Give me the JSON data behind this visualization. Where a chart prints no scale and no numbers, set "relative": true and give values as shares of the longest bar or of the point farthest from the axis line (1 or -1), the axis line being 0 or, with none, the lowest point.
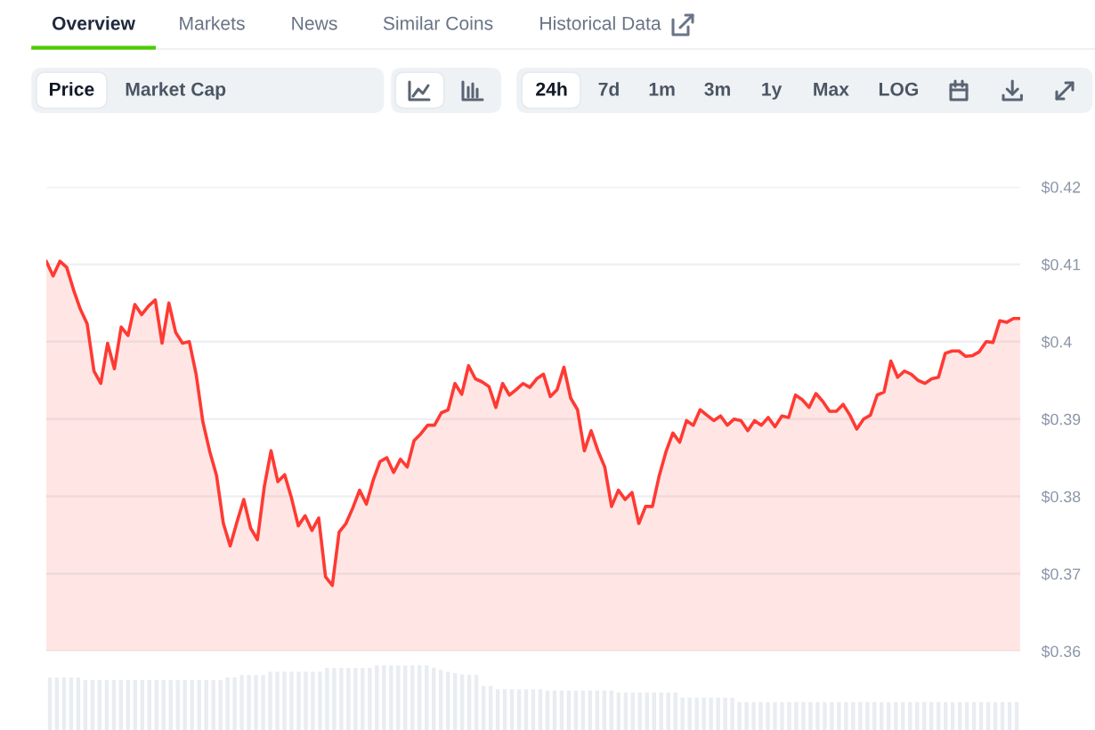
{
  "chart_data": [
    {
      "type": "other",
      "annotations": [
        "Overview",
        "Markets",
        "News",
        "Similar Coins",
        "Historical Data",
        "Price",
        "Market Cap",
        "24h",
        "7d",
        "1m",
        "3m",
        "1y",
        "Max",
        "LOG"
      ]
    },
    {
      "type": "area",
      "color": "#ff3a33",
      "grid": "y",
      "tick_labels": "y",
      "ylim": [
        0.36,
        0.42
      ],
      "yticks": [
        {
          "value": 0.42,
          "label": "$0.42"
        },
        {
          "value": 0.41,
          "label": "$0.41"
        },
        {
          "value": 0.4,
          "label": "$0.4"
        },
        {
          "value": 0.39,
          "label": "$0.39"
        },
        {
          "value": 0.38,
          "label": "$0.38"
        },
        {
          "value": 0.37,
          "label": "$0.37"
        },
        {
          "value": 0.36,
          "label": "$0.36"
        }
      ],
      "categories": [
        null,
        null,
        null,
        null,
        null,
        null,
        null,
        null,
        null,
        null,
        null,
        null,
        null,
        null,
        null,
        null,
        null,
        null,
        null,
        null,
        null,
        null,
        null,
        null,
        null,
        null,
        null,
        null,
        null,
        null,
        null,
        null,
        null,
        null,
        null,
        null,
        null,
        null,
        null,
        null,
        null,
        null,
        null,
        null,
        null,
        null,
        null,
        null,
        null,
        null,
        null,
        null,
        null,
        null,
        null,
        null,
        null,
        null,
        null,
        null,
        null,
        null,
        null,
        null,
        null,
        null,
        null,
        null,
        null,
        null,
        null,
        null,
        null,
        null,
        null,
        null,
        null,
        null,
        null,
        null,
        null,
        null,
        null,
        null,
        null,
        null,
        null,
        null,
        null,
        null,
        null,
        null,
        null,
        null,
        null,
        null,
        null,
        null,
        null,
        null,
        null,
        null,
        null,
        null,
        null,
        null,
        null,
        null,
        null,
        null,
        null,
        null,
        null,
        null,
        null,
        null,
        null,
        null,
        null,
        null,
        null,
        null,
        null,
        null,
        null,
        null,
        null,
        null,
        null,
        null,
        null,
        null,
        null,
        null,
        null,
        null,
        null,
        null,
        null,
        null,
        null,
        null,
        null,
        null
      ],
      "values": [
        0.4104,
        0.4085,
        0.4104,
        0.4096,
        0.4067,
        0.4042,
        0.4023,
        0.3962,
        0.3946,
        0.3998,
        0.3965,
        0.4019,
        0.4008,
        0.4048,
        0.4035,
        0.4046,
        0.4054,
        0.3998,
        0.405,
        0.4012,
        0.3998,
        0.4,
        0.3958,
        0.3896,
        0.3858,
        0.3827,
        0.3765,
        0.3736,
        0.3767,
        0.3796,
        0.3759,
        0.3744,
        0.3812,
        0.3859,
        0.3819,
        0.3828,
        0.3798,
        0.3762,
        0.3775,
        0.3756,
        0.3772,
        0.3696,
        0.3685,
        0.3754,
        0.3765,
        0.3785,
        0.3808,
        0.379,
        0.3821,
        0.3845,
        0.385,
        0.3831,
        0.3848,
        0.3838,
        0.3872,
        0.3881,
        0.3892,
        0.3892,
        0.3908,
        0.3912,
        0.3946,
        0.3932,
        0.3969,
        0.3952,
        0.3948,
        0.3942,
        0.3915,
        0.3946,
        0.3931,
        0.3938,
        0.3946,
        0.3941,
        0.3952,
        0.3958,
        0.3929,
        0.3938,
        0.3967,
        0.3927,
        0.3912,
        0.3859,
        0.3885,
        0.3859,
        0.3838,
        0.3787,
        0.3808,
        0.3796,
        0.3805,
        0.3765,
        0.3787,
        0.3787,
        0.3827,
        0.3858,
        0.3882,
        0.387,
        0.3898,
        0.3892,
        0.3912,
        0.3905,
        0.3898,
        0.3904,
        0.3892,
        0.39,
        0.3898,
        0.3885,
        0.3898,
        0.3892,
        0.3902,
        0.389,
        0.3904,
        0.3902,
        0.3931,
        0.3925,
        0.3915,
        0.3933,
        0.3923,
        0.391,
        0.391,
        0.3919,
        0.3905,
        0.3887,
        0.39,
        0.3905,
        0.3931,
        0.3935,
        0.3975,
        0.3954,
        0.3962,
        0.3958,
        0.395,
        0.3946,
        0.3952,
        0.3954,
        0.3985,
        0.3988,
        0.3988,
        0.3981,
        0.3982,
        0.3987,
        0.4,
        0.3999,
        0.4027,
        0.4025,
        0.403,
        0.403
      ]
    },
    {
      "type": "bar",
      "relative": true,
      "color": "#e9ecf1",
      "tick_labels": false,
      "categories": [
        null,
        null,
        null,
        null,
        null,
        null,
        null,
        null,
        null,
        null,
        null,
        null,
        null,
        null,
        null,
        null,
        null,
        null,
        null,
        null,
        null,
        null,
        null,
        null,
        null,
        null,
        null,
        null,
        null,
        null,
        null,
        null,
        null,
        null,
        null,
        null,
        null,
        null,
        null,
        null,
        null,
        null,
        null,
        null,
        null,
        null,
        null,
        null,
        null,
        null,
        null,
        null,
        null,
        null,
        null,
        null,
        null,
        null,
        null,
        null,
        null,
        null,
        null,
        null,
        null,
        null,
        null,
        null,
        null,
        null,
        null,
        null,
        null,
        null,
        null,
        null,
        null,
        null,
        null,
        null,
        null,
        null,
        null,
        null,
        null,
        null,
        null,
        null,
        null,
        null,
        null,
        null,
        null,
        null,
        null,
        null,
        null,
        null,
        null,
        null,
        null,
        null,
        null,
        null,
        null,
        null,
        null,
        null,
        null,
        null,
        null,
        null,
        null,
        null,
        null,
        null,
        null,
        null,
        null,
        null,
        null,
        null,
        null,
        null,
        null,
        null,
        null,
        null,
        null,
        null,
        null,
        null,
        null,
        null,
        null,
        null,
        null
      ],
      "values": [
        0.81,
        0.81,
        0.81,
        0.81,
        0.81,
        0.77,
        0.77,
        0.77,
        0.77,
        0.77,
        0.77,
        0.77,
        0.77,
        0.77,
        0.77,
        0.77,
        0.77,
        0.77,
        0.77,
        0.77,
        0.77,
        0.77,
        0.77,
        0.77,
        0.77,
        0.81,
        0.81,
        0.85,
        0.85,
        0.85,
        0.85,
        0.9,
        0.9,
        0.9,
        0.9,
        0.9,
        0.9,
        0.9,
        0.9,
        0.96,
        0.96,
        0.96,
        0.96,
        0.96,
        0.96,
        0.96,
        1,
        1,
        1,
        1,
        1,
        1,
        1,
        1,
        0.96,
        0.93,
        0.9,
        0.88,
        0.86,
        0.85,
        0.85,
        0.68,
        0.68,
        0.63,
        0.63,
        0.63,
        0.63,
        0.63,
        0.63,
        0.63,
        0.61,
        0.61,
        0.61,
        0.61,
        0.61,
        0.61,
        0.61,
        0.61,
        0.61,
        0.61,
        0.58,
        0.58,
        0.58,
        0.58,
        0.58,
        0.58,
        0.58,
        0.58,
        0.58,
        0.5,
        0.5,
        0.5,
        0.5,
        0.5,
        0.5,
        0.5,
        0.5,
        0.43,
        0.43,
        0.43,
        0.43,
        0.43,
        0.43,
        0.43,
        0.43,
        0.43,
        0.43,
        0.43,
        0.43,
        0.43,
        0.43,
        0.43,
        0.43,
        0.43,
        0.43,
        0.43,
        0.43,
        0.43,
        0.43,
        0.43,
        0.43,
        0.43,
        0.43,
        0.43,
        0.43,
        0.43,
        0.43,
        0.43,
        0.43,
        0.43,
        0.43,
        0.43,
        0.43,
        0.43,
        0.43,
        0.43,
        0.43
      ]
    }
  ]
}
